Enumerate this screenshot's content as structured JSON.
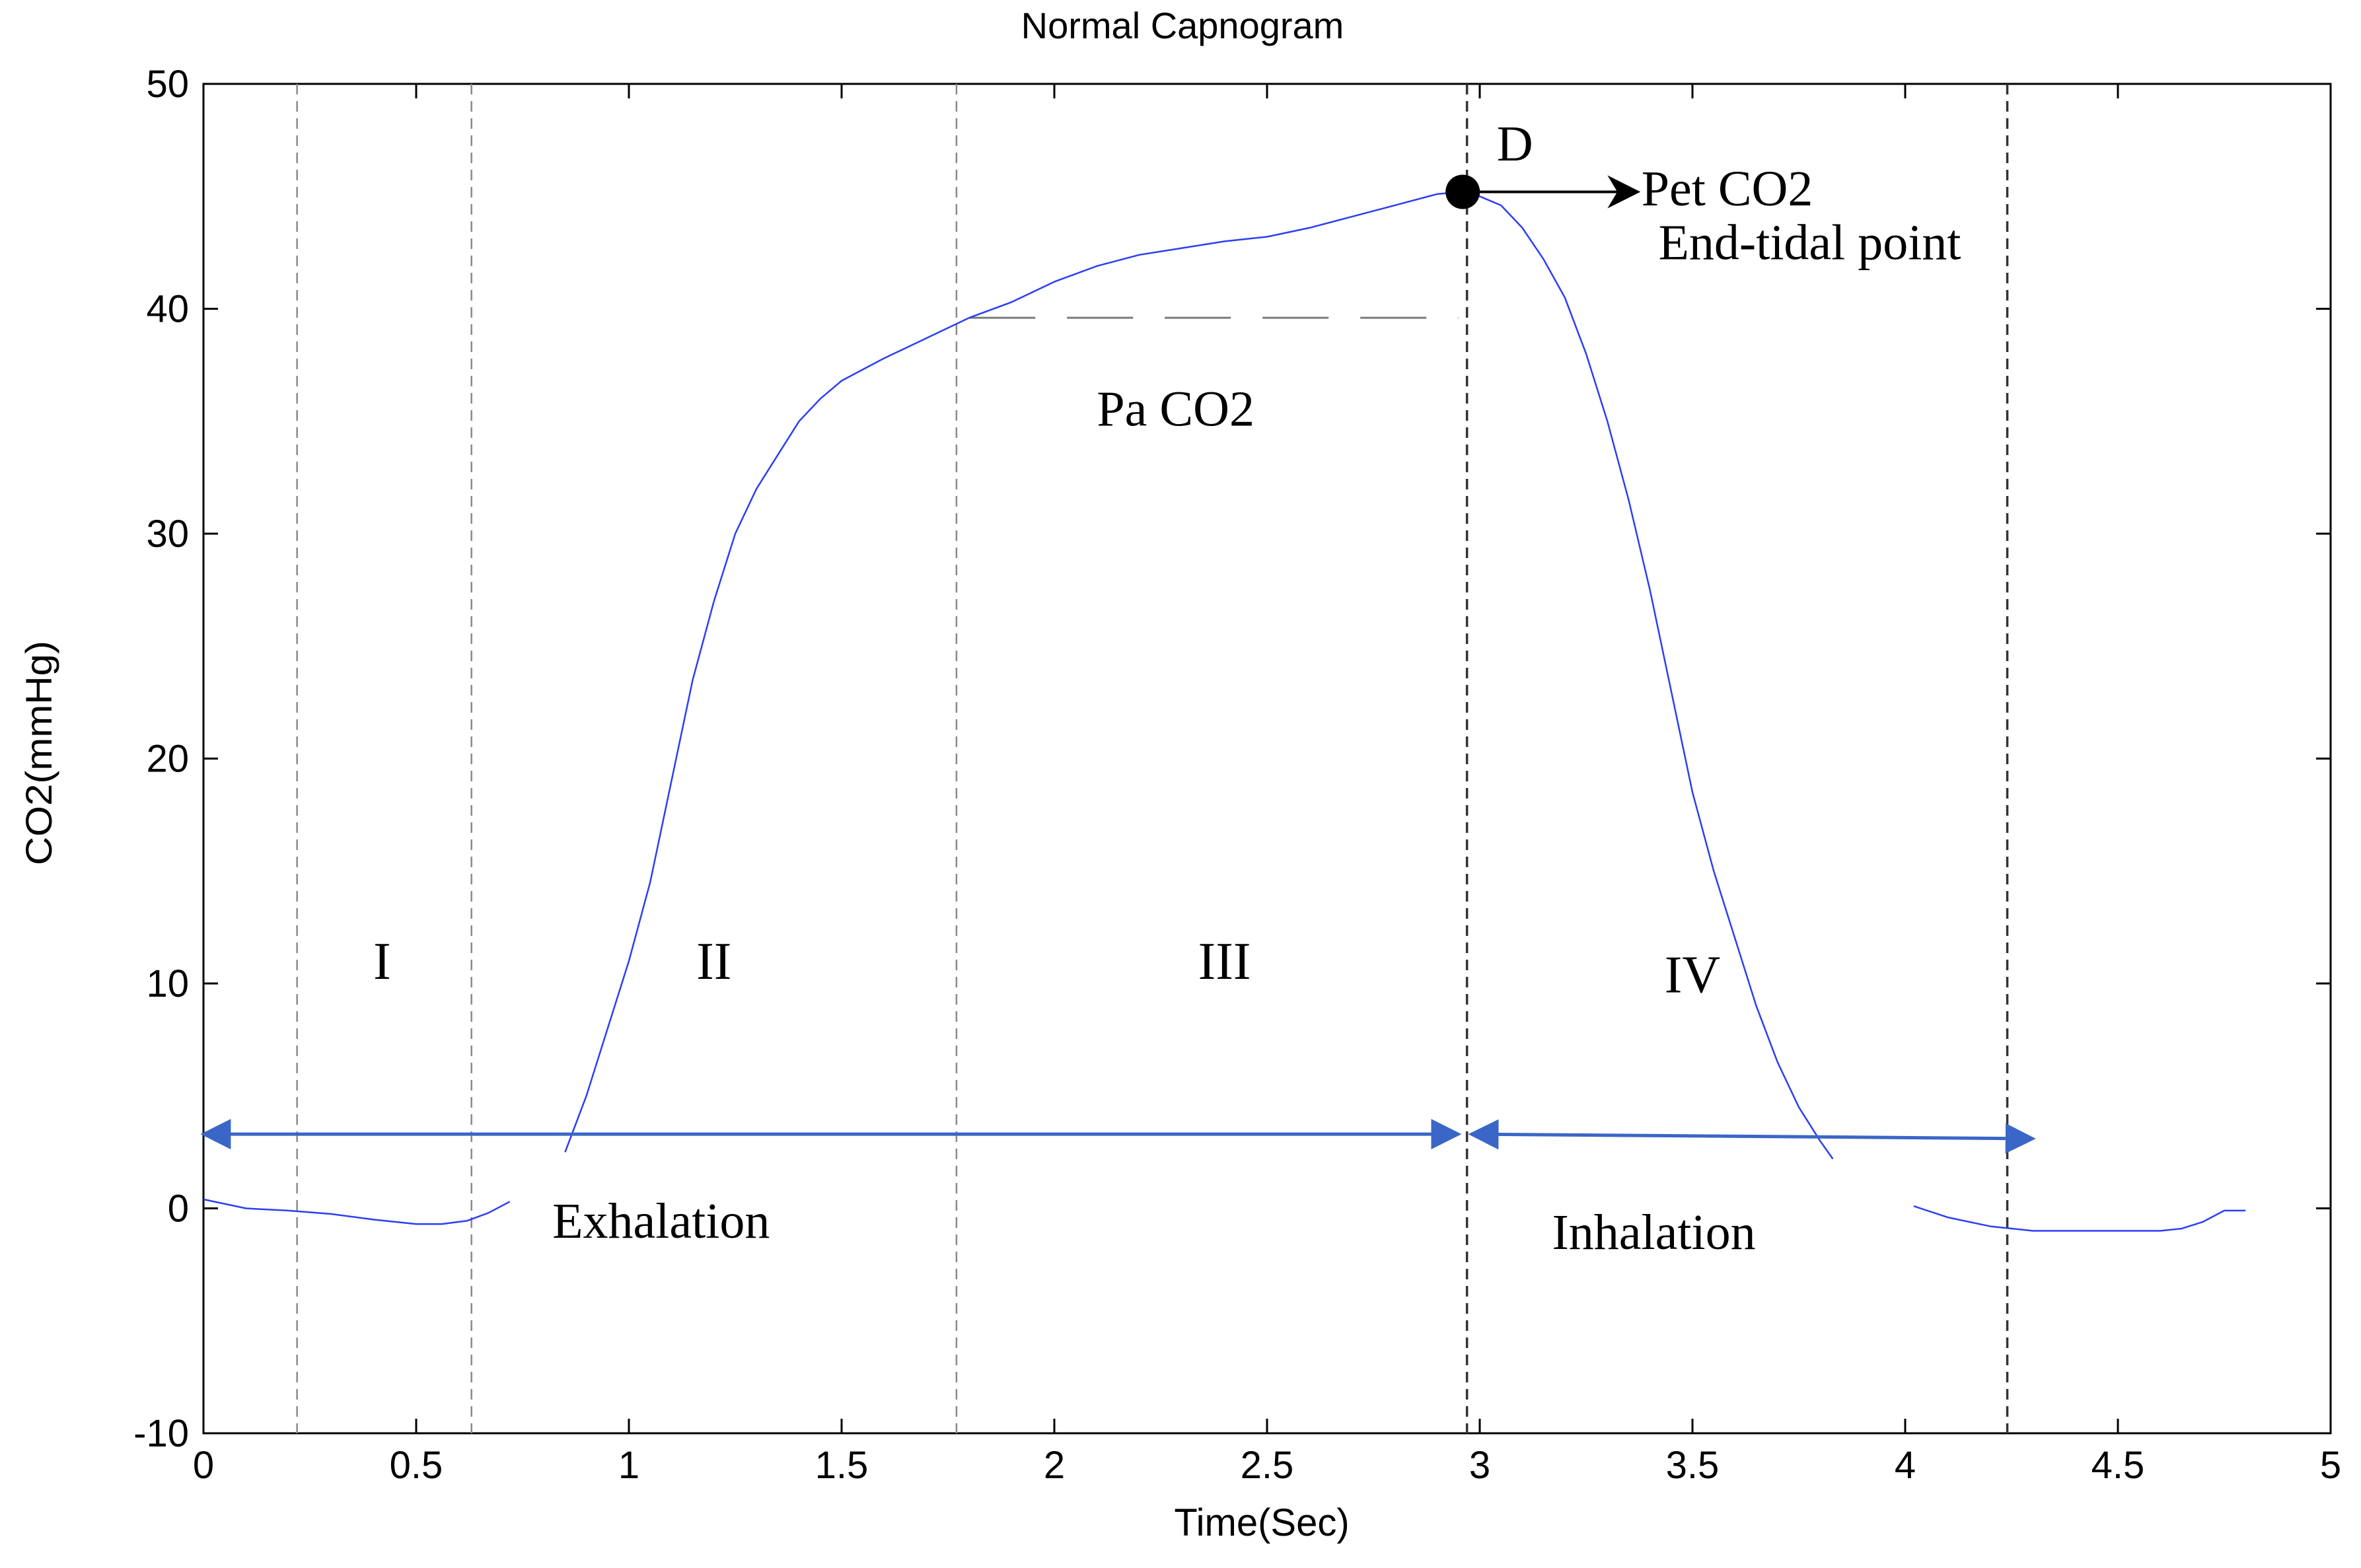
{
  "chart_data": {
    "type": "line",
    "title": "Normal Capnogram",
    "xlabel": "Time(Sec)",
    "ylabel": "CO2(mmHg)",
    "xlim": [
      0,
      5
    ],
    "ylim": [
      -10,
      50
    ],
    "xticks": [
      0,
      0.5,
      1,
      1.5,
      2,
      2.5,
      3,
      3.5,
      4,
      4.5,
      5
    ],
    "xtick_labels": [
      "0",
      "0.5",
      "1",
      "1.5",
      "2",
      "2.5",
      "3",
      "3.5",
      "4",
      "4.5",
      "5"
    ],
    "yticks": [
      -10,
      0,
      10,
      20,
      30,
      40,
      50
    ],
    "ytick_labels": [
      "-10",
      "0",
      "10",
      "20",
      "30",
      "40",
      "50"
    ],
    "grid": false,
    "series": [
      {
        "name": "",
        "color": "#2b3ff5",
        "segments": [
          [
            [
              0.0,
              0.4
            ],
            [
              0.1,
              0.0
            ],
            [
              0.2,
              -0.1
            ],
            [
              0.3,
              -0.25
            ],
            [
              0.4,
              -0.5
            ],
            [
              0.5,
              -0.7
            ],
            [
              0.56,
              -0.7
            ],
            [
              0.62,
              -0.55
            ],
            [
              0.67,
              -0.2
            ],
            [
              0.72,
              0.3
            ]
          ],
          [
            [
              0.85,
              2.5
            ],
            [
              0.9,
              5.0
            ],
            [
              0.95,
              8.0
            ],
            [
              1.0,
              11.0
            ],
            [
              1.05,
              14.5
            ],
            [
              1.1,
              19.0
            ],
            [
              1.15,
              23.5
            ],
            [
              1.2,
              27.0
            ],
            [
              1.25,
              30.0
            ],
            [
              1.3,
              32.0
            ],
            [
              1.35,
              33.5
            ],
            [
              1.4,
              35.0
            ],
            [
              1.45,
              36.0
            ],
            [
              1.5,
              36.8
            ],
            [
              1.55,
              37.3
            ],
            [
              1.6,
              37.8
            ],
            [
              1.7,
              38.7
            ],
            [
              1.8,
              39.6
            ],
            [
              1.9,
              40.3
            ],
            [
              2.0,
              41.2
            ],
            [
              2.1,
              41.9
            ],
            [
              2.2,
              42.4
            ],
            [
              2.3,
              42.7
            ],
            [
              2.4,
              43.0
            ],
            [
              2.5,
              43.2
            ],
            [
              2.6,
              43.6
            ],
            [
              2.7,
              44.1
            ],
            [
              2.8,
              44.6
            ],
            [
              2.9,
              45.1
            ],
            [
              2.96,
              45.2
            ],
            [
              3.0,
              45.0
            ],
            [
              3.05,
              44.6
            ],
            [
              3.1,
              43.6
            ],
            [
              3.15,
              42.2
            ],
            [
              3.2,
              40.5
            ],
            [
              3.25,
              38.0
            ],
            [
              3.3,
              35.0
            ],
            [
              3.35,
              31.5
            ],
            [
              3.4,
              27.5
            ],
            [
              3.45,
              23.0
            ],
            [
              3.5,
              18.5
            ],
            [
              3.55,
              15.0
            ],
            [
              3.6,
              12.0
            ],
            [
              3.65,
              9.0
            ],
            [
              3.7,
              6.5
            ],
            [
              3.75,
              4.5
            ],
            [
              3.8,
              3.0
            ],
            [
              3.83,
              2.2
            ]
          ],
          [
            [
              4.02,
              0.1
            ],
            [
              4.1,
              -0.4
            ],
            [
              4.2,
              -0.8
            ],
            [
              4.3,
              -1.0
            ],
            [
              4.4,
              -1.0
            ],
            [
              4.5,
              -1.0
            ],
            [
              4.6,
              -1.0
            ],
            [
              4.65,
              -0.9
            ],
            [
              4.7,
              -0.6
            ],
            [
              4.75,
              -0.1
            ],
            [
              4.8,
              -0.1
            ]
          ]
        ]
      }
    ],
    "phase_lines": [
      {
        "x": 0.22,
        "dark": false
      },
      {
        "x": 0.63,
        "dark": false
      },
      {
        "x": 1.77,
        "dark": false
      },
      {
        "x": 2.97,
        "dark": true
      },
      {
        "x": 4.24,
        "dark": true
      }
    ],
    "paco2_line": {
      "x_start": 1.8,
      "x_end": 2.95,
      "y": 39.6
    },
    "end_tidal_point": {
      "x": 2.96,
      "y": 45.2
    },
    "phase_labels": [
      {
        "text": "I",
        "x": 0.42,
        "y": 10.2
      },
      {
        "text": "II",
        "x": 1.2,
        "y": 10.2
      },
      {
        "text": "III",
        "x": 2.4,
        "y": 10.2
      },
      {
        "text": "IV",
        "x": 3.5,
        "y": 9.6
      }
    ],
    "annotations": [
      {
        "text": "D",
        "x": 3.04,
        "y": 46.6
      },
      {
        "text": "Pet CO2",
        "x": 3.38,
        "y": 44.6
      },
      {
        "text": "End-tidal point",
        "x": 3.42,
        "y": 42.2
      },
      {
        "text": "Pa CO2",
        "x": 2.1,
        "y": 34.8
      },
      {
        "text": "Exhalation",
        "x": 0.82,
        "y": -1.3
      },
      {
        "text": "Inhalation",
        "x": 3.17,
        "y": -1.8
      }
    ],
    "arrows": [
      {
        "from": [
          0.0,
          3.3
        ],
        "to": [
          2.95,
          3.3
        ],
        "color": "#3a66c7",
        "double": true
      },
      {
        "from": [
          2.98,
          3.3
        ],
        "to": [
          4.3,
          3.1
        ],
        "color": "#3a66c7",
        "double": true
      },
      {
        "from": [
          2.96,
          45.2
        ],
        "to": [
          3.37,
          45.2
        ],
        "color": "#000000",
        "double": false
      }
    ]
  }
}
